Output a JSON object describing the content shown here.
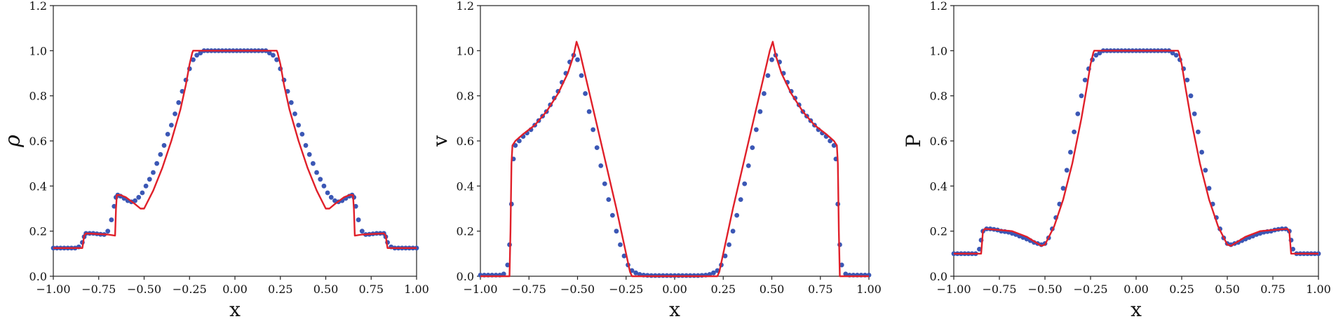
{
  "colors": {
    "line": "#e0202a",
    "points": "#3b57b5",
    "axis": "#222222"
  },
  "chart_data": [
    {
      "type": "line",
      "xlabel": "x",
      "ylabel": "ρ",
      "xlim": [
        -1.0,
        1.0
      ],
      "ylim": [
        0.0,
        1.2
      ],
      "xticks": [
        "−1.00",
        "−0.75",
        "−0.50",
        "−0.25",
        "0.00",
        "0.25",
        "0.50",
        "0.75",
        "1.00"
      ],
      "yticks": [
        "0.0",
        "0.2",
        "0.4",
        "0.6",
        "0.8",
        "1.0",
        "1.2"
      ],
      "series": [
        {
          "style": "line",
          "x": [
            -1.0,
            -0.84,
            -0.835,
            -0.83,
            -0.82,
            -0.7,
            -0.66,
            -0.655,
            -0.65,
            -0.63,
            -0.6,
            -0.55,
            -0.52,
            -0.5,
            -0.45,
            -0.4,
            -0.35,
            -0.3,
            -0.27,
            -0.25,
            -0.235,
            -0.23,
            0.0,
            0.23,
            0.235,
            0.25,
            0.27,
            0.3,
            0.35,
            0.4,
            0.45,
            0.5,
            0.52,
            0.55,
            0.6,
            0.63,
            0.65,
            0.655,
            0.66,
            0.7,
            0.82,
            0.83,
            0.835,
            0.84,
            1.0
          ],
          "y": [
            0.125,
            0.125,
            0.15,
            0.18,
            0.19,
            0.185,
            0.18,
            0.3,
            0.36,
            0.36,
            0.35,
            0.32,
            0.3,
            0.3,
            0.38,
            0.48,
            0.6,
            0.74,
            0.85,
            0.94,
            0.99,
            1.0,
            1.0,
            1.0,
            0.99,
            0.94,
            0.85,
            0.74,
            0.6,
            0.48,
            0.38,
            0.3,
            0.3,
            0.32,
            0.35,
            0.36,
            0.36,
            0.3,
            0.18,
            0.185,
            0.19,
            0.18,
            0.15,
            0.125,
            0.125
          ]
        },
        {
          "style": "points",
          "x": [
            -1.0,
            -0.98,
            -0.96,
            -0.94,
            -0.92,
            -0.9,
            -0.88,
            -0.86,
            -0.84,
            -0.83,
            -0.82,
            -0.8,
            -0.78,
            -0.76,
            -0.74,
            -0.72,
            -0.7,
            -0.68,
            -0.665,
            -0.655,
            -0.645,
            -0.63,
            -0.61,
            -0.59,
            -0.57,
            -0.55,
            -0.53,
            -0.51,
            -0.49,
            -0.47,
            -0.45,
            -0.43,
            -0.41,
            -0.39,
            -0.37,
            -0.35,
            -0.33,
            -0.31,
            -0.29,
            -0.27,
            -0.25,
            -0.23,
            -0.21,
            -0.19,
            -0.17,
            -0.15,
            -0.13,
            -0.11,
            -0.09,
            -0.07,
            -0.05,
            -0.03,
            -0.01,
            0.01,
            0.03,
            0.05,
            0.07,
            0.09,
            0.11,
            0.13,
            0.15,
            0.17,
            0.19,
            0.21,
            0.23,
            0.25,
            0.27,
            0.29,
            0.31,
            0.33,
            0.35,
            0.37,
            0.39,
            0.41,
            0.43,
            0.45,
            0.47,
            0.49,
            0.51,
            0.53,
            0.55,
            0.57,
            0.59,
            0.61,
            0.63,
            0.645,
            0.655,
            0.665,
            0.68,
            0.7,
            0.72,
            0.74,
            0.76,
            0.78,
            0.8,
            0.82,
            0.83,
            0.84,
            0.86,
            0.88,
            0.9,
            0.92,
            0.94,
            0.96,
            0.98,
            1.0
          ],
          "y": [
            0.125,
            0.125,
            0.125,
            0.125,
            0.125,
            0.125,
            0.125,
            0.13,
            0.15,
            0.175,
            0.19,
            0.19,
            0.19,
            0.188,
            0.186,
            0.185,
            0.2,
            0.25,
            0.31,
            0.35,
            0.36,
            0.355,
            0.345,
            0.335,
            0.33,
            0.335,
            0.35,
            0.37,
            0.4,
            0.43,
            0.46,
            0.5,
            0.54,
            0.58,
            0.63,
            0.67,
            0.72,
            0.77,
            0.82,
            0.87,
            0.92,
            0.96,
            0.98,
            0.99,
            1.0,
            1.0,
            1.0,
            1.0,
            1.0,
            1.0,
            1.0,
            1.0,
            1.0,
            1.0,
            1.0,
            1.0,
            1.0,
            1.0,
            1.0,
            1.0,
            1.0,
            1.0,
            0.99,
            0.98,
            0.96,
            0.92,
            0.87,
            0.82,
            0.77,
            0.72,
            0.67,
            0.63,
            0.58,
            0.54,
            0.5,
            0.46,
            0.43,
            0.4,
            0.37,
            0.35,
            0.335,
            0.33,
            0.335,
            0.345,
            0.355,
            0.36,
            0.35,
            0.31,
            0.25,
            0.2,
            0.185,
            0.186,
            0.188,
            0.19,
            0.19,
            0.19,
            0.175,
            0.15,
            0.13,
            0.125,
            0.125,
            0.125,
            0.125,
            0.125,
            0.125,
            0.125
          ]
        }
      ]
    },
    {
      "type": "line",
      "xlabel": "x",
      "ylabel": "v",
      "xlim": [
        -1.0,
        1.0
      ],
      "ylim": [
        0.0,
        1.2
      ],
      "xticks": [
        "−1.00",
        "−0.75",
        "−0.50",
        "−0.25",
        "0.00",
        "0.25",
        "0.50",
        "0.75",
        "1.00"
      ],
      "yticks": [
        "0.0",
        "0.2",
        "0.4",
        "0.6",
        "0.8",
        "1.0",
        "1.2"
      ],
      "series": [
        {
          "style": "line",
          "x": [
            -1.0,
            -0.85,
            -0.845,
            -0.84,
            -0.835,
            -0.82,
            -0.78,
            -0.72,
            -0.66,
            -0.6,
            -0.55,
            -0.52,
            -0.505,
            -0.49,
            -0.4,
            -0.3,
            -0.23,
            -0.22,
            0.0,
            0.22,
            0.23,
            0.3,
            0.4,
            0.49,
            0.505,
            0.52,
            0.55,
            0.6,
            0.66,
            0.72,
            0.78,
            0.82,
            0.835,
            0.84,
            0.845,
            0.85,
            1.0
          ],
          "y": [
            0.0,
            0.0,
            0.2,
            0.5,
            0.58,
            0.6,
            0.63,
            0.67,
            0.73,
            0.81,
            0.9,
            0.98,
            1.04,
            1.0,
            0.67,
            0.3,
            0.02,
            0.0,
            0.0,
            0.0,
            0.02,
            0.3,
            0.67,
            1.0,
            1.04,
            0.98,
            0.9,
            0.81,
            0.73,
            0.67,
            0.63,
            0.6,
            0.58,
            0.5,
            0.2,
            0.0,
            0.0
          ]
        },
        {
          "style": "points",
          "x": [
            -1.0,
            -0.98,
            -0.96,
            -0.94,
            -0.92,
            -0.9,
            -0.88,
            -0.86,
            -0.85,
            -0.84,
            -0.83,
            -0.82,
            -0.8,
            -0.78,
            -0.76,
            -0.74,
            -0.72,
            -0.7,
            -0.68,
            -0.66,
            -0.64,
            -0.62,
            -0.6,
            -0.58,
            -0.56,
            -0.54,
            -0.52,
            -0.5,
            -0.48,
            -0.46,
            -0.44,
            -0.42,
            -0.4,
            -0.38,
            -0.36,
            -0.34,
            -0.32,
            -0.3,
            -0.28,
            -0.26,
            -0.24,
            -0.22,
            -0.2,
            -0.18,
            -0.16,
            -0.14,
            -0.12,
            -0.1,
            -0.08,
            -0.06,
            -0.04,
            -0.02,
            0.0,
            0.02,
            0.04,
            0.06,
            0.08,
            0.1,
            0.12,
            0.14,
            0.16,
            0.18,
            0.2,
            0.22,
            0.24,
            0.26,
            0.28,
            0.3,
            0.32,
            0.34,
            0.36,
            0.38,
            0.4,
            0.42,
            0.44,
            0.46,
            0.48,
            0.5,
            0.52,
            0.54,
            0.56,
            0.58,
            0.6,
            0.62,
            0.64,
            0.66,
            0.68,
            0.7,
            0.72,
            0.74,
            0.76,
            0.78,
            0.8,
            0.82,
            0.83,
            0.84,
            0.85,
            0.86,
            0.88,
            0.9,
            0.92,
            0.94,
            0.96,
            0.98,
            1.0
          ],
          "y": [
            0.005,
            0.005,
            0.005,
            0.005,
            0.005,
            0.005,
            0.01,
            0.05,
            0.14,
            0.32,
            0.52,
            0.58,
            0.6,
            0.62,
            0.635,
            0.65,
            0.67,
            0.69,
            0.71,
            0.73,
            0.76,
            0.79,
            0.82,
            0.86,
            0.9,
            0.95,
            0.98,
            0.96,
            0.89,
            0.81,
            0.73,
            0.65,
            0.57,
            0.49,
            0.41,
            0.34,
            0.27,
            0.2,
            0.14,
            0.09,
            0.05,
            0.025,
            0.015,
            0.008,
            0.005,
            0.004,
            0.003,
            0.003,
            0.003,
            0.003,
            0.003,
            0.003,
            0.003,
            0.003,
            0.003,
            0.003,
            0.003,
            0.003,
            0.003,
            0.004,
            0.005,
            0.008,
            0.015,
            0.025,
            0.05,
            0.09,
            0.14,
            0.2,
            0.27,
            0.34,
            0.41,
            0.49,
            0.57,
            0.65,
            0.73,
            0.81,
            0.89,
            0.96,
            0.98,
            0.95,
            0.9,
            0.86,
            0.82,
            0.79,
            0.76,
            0.73,
            0.71,
            0.69,
            0.67,
            0.65,
            0.635,
            0.62,
            0.6,
            0.58,
            0.52,
            0.32,
            0.14,
            0.05,
            0.01,
            0.005,
            0.005,
            0.005,
            0.005,
            0.005,
            0.005
          ]
        }
      ]
    },
    {
      "type": "line",
      "xlabel": "x",
      "ylabel": "P",
      "xlim": [
        -1.0,
        1.0
      ],
      "ylim": [
        0.0,
        1.2
      ],
      "xticks": [
        "−1.00",
        "−0.75",
        "−0.50",
        "−0.25",
        "0.00",
        "0.25",
        "0.50",
        "0.75",
        "1.00"
      ],
      "yticks": [
        "0.0",
        "0.2",
        "0.4",
        "0.6",
        "0.8",
        "1.0",
        "1.2"
      ],
      "series": [
        {
          "style": "line",
          "x": [
            -1.0,
            -0.85,
            -0.845,
            -0.84,
            -0.83,
            -0.75,
            -0.68,
            -0.6,
            -0.55,
            -0.52,
            -0.5,
            -0.45,
            -0.4,
            -0.35,
            -0.3,
            -0.27,
            -0.25,
            -0.235,
            -0.23,
            0.0,
            0.23,
            0.235,
            0.25,
            0.27,
            0.3,
            0.35,
            0.4,
            0.45,
            0.5,
            0.52,
            0.55,
            0.6,
            0.68,
            0.75,
            0.83,
            0.84,
            0.845,
            0.85,
            1.0
          ],
          "y": [
            0.1,
            0.1,
            0.15,
            0.2,
            0.21,
            0.205,
            0.2,
            0.175,
            0.15,
            0.135,
            0.14,
            0.22,
            0.34,
            0.5,
            0.7,
            0.84,
            0.94,
            0.99,
            1.0,
            1.0,
            1.0,
            0.99,
            0.94,
            0.84,
            0.7,
            0.5,
            0.34,
            0.22,
            0.14,
            0.135,
            0.15,
            0.175,
            0.2,
            0.205,
            0.21,
            0.2,
            0.15,
            0.1,
            0.1
          ]
        },
        {
          "style": "points",
          "x": [
            -1.0,
            -0.98,
            -0.96,
            -0.94,
            -0.92,
            -0.9,
            -0.88,
            -0.86,
            -0.85,
            -0.84,
            -0.82,
            -0.8,
            -0.78,
            -0.76,
            -0.74,
            -0.72,
            -0.7,
            -0.68,
            -0.66,
            -0.64,
            -0.62,
            -0.6,
            -0.58,
            -0.56,
            -0.54,
            -0.52,
            -0.5,
            -0.48,
            -0.46,
            -0.44,
            -0.42,
            -0.4,
            -0.38,
            -0.36,
            -0.34,
            -0.32,
            -0.3,
            -0.28,
            -0.26,
            -0.24,
            -0.22,
            -0.2,
            -0.18,
            -0.16,
            -0.14,
            -0.12,
            -0.1,
            -0.08,
            -0.06,
            -0.04,
            -0.02,
            0.0,
            0.02,
            0.04,
            0.06,
            0.08,
            0.1,
            0.12,
            0.14,
            0.16,
            0.18,
            0.2,
            0.22,
            0.24,
            0.26,
            0.28,
            0.3,
            0.32,
            0.34,
            0.36,
            0.38,
            0.4,
            0.42,
            0.44,
            0.46,
            0.48,
            0.5,
            0.52,
            0.54,
            0.56,
            0.58,
            0.6,
            0.62,
            0.64,
            0.66,
            0.68,
            0.7,
            0.72,
            0.74,
            0.76,
            0.78,
            0.8,
            0.82,
            0.84,
            0.85,
            0.86,
            0.88,
            0.9,
            0.92,
            0.94,
            0.96,
            0.98,
            1.0
          ],
          "y": [
            0.1,
            0.1,
            0.1,
            0.1,
            0.1,
            0.1,
            0.1,
            0.12,
            0.16,
            0.2,
            0.21,
            0.21,
            0.208,
            0.205,
            0.2,
            0.198,
            0.195,
            0.19,
            0.185,
            0.178,
            0.172,
            0.165,
            0.158,
            0.15,
            0.145,
            0.14,
            0.145,
            0.17,
            0.21,
            0.26,
            0.32,
            0.39,
            0.47,
            0.55,
            0.64,
            0.72,
            0.8,
            0.87,
            0.92,
            0.96,
            0.98,
            0.99,
            1.0,
            1.0,
            1.0,
            1.0,
            1.0,
            1.0,
            1.0,
            1.0,
            1.0,
            1.0,
            1.0,
            1.0,
            1.0,
            1.0,
            1.0,
            1.0,
            1.0,
            1.0,
            1.0,
            0.99,
            0.98,
            0.96,
            0.92,
            0.87,
            0.8,
            0.72,
            0.64,
            0.55,
            0.47,
            0.39,
            0.32,
            0.26,
            0.21,
            0.17,
            0.145,
            0.14,
            0.145,
            0.15,
            0.158,
            0.165,
            0.172,
            0.178,
            0.185,
            0.19,
            0.195,
            0.198,
            0.2,
            0.205,
            0.208,
            0.21,
            0.21,
            0.2,
            0.16,
            0.12,
            0.1,
            0.1,
            0.1,
            0.1,
            0.1,
            0.1,
            0.1
          ]
        }
      ]
    }
  ]
}
